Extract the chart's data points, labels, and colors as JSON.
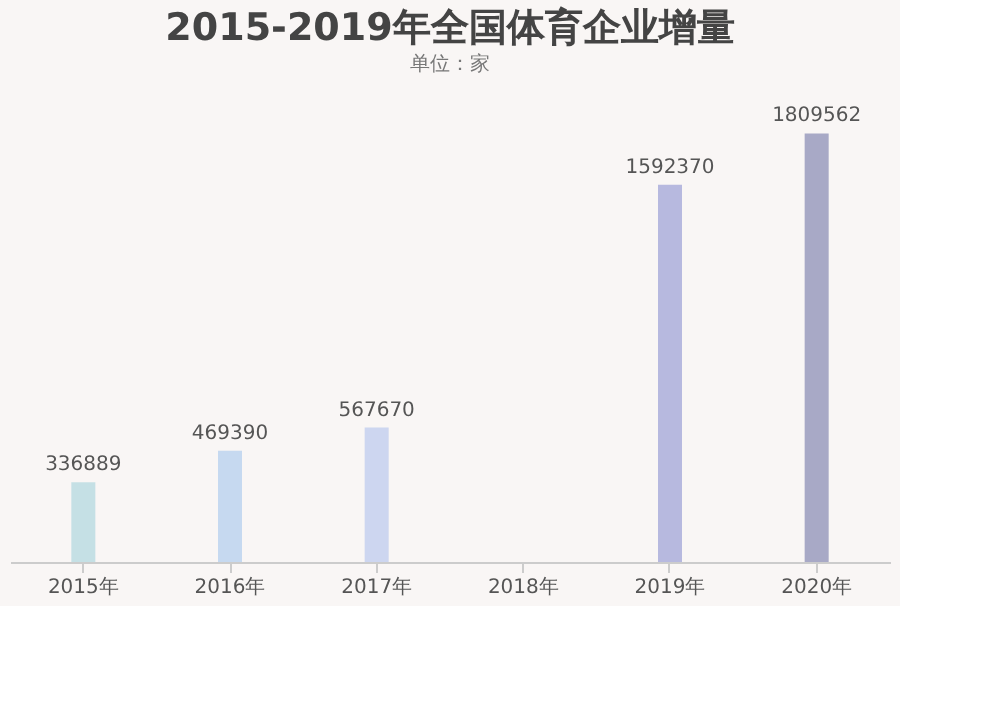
{
  "chart_data": {
    "type": "bar",
    "title": "2015-2019年全国体育企业增量",
    "subtitle": "单位：家",
    "categories": [
      "2015年",
      "2016年",
      "2017年",
      "2018年",
      "2019年",
      "2020年"
    ],
    "values": [
      336889,
      469390,
      567670,
      null,
      1592370,
      1809562
    ],
    "colors": [
      "#bcdce2",
      "#bdd4ee",
      "#c5d0ef",
      "#adc3e8",
      "#abaedb",
      "#9a9bbd"
    ],
    "data_labels": true
  }
}
